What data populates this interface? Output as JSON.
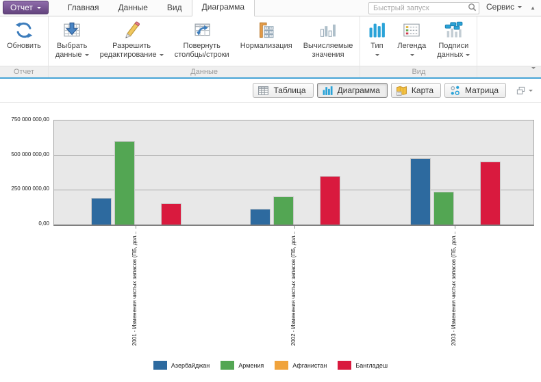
{
  "tabbar": {
    "report_button": {
      "label": "Отчет"
    },
    "tabs": [
      {
        "key": "home",
        "label": "Главная",
        "active": false
      },
      {
        "key": "data",
        "label": "Данные",
        "active": false
      },
      {
        "key": "view",
        "label": "Вид",
        "active": false
      },
      {
        "key": "chart",
        "label": "Диаграмма",
        "active": true
      }
    ],
    "search_placeholder": "Быстрый запуск",
    "service_label": "Сервис"
  },
  "ribbon": {
    "groups": [
      {
        "key": "report",
        "label": "Отчет",
        "buttons": [
          {
            "key": "refresh",
            "icon": "refresh-icon",
            "lines": [
              "Обновить"
            ],
            "dropdown": false
          }
        ]
      },
      {
        "key": "data",
        "label": "Данные",
        "buttons": [
          {
            "key": "select-data",
            "icon": "select-data-icon",
            "lines": [
              "Выбрать",
              "данные"
            ],
            "dropdown": true
          },
          {
            "key": "allow-editing",
            "icon": "edit-icon",
            "lines": [
              "Разрешить",
              "редактирование"
            ],
            "dropdown": true
          },
          {
            "key": "pivot-columns-rows",
            "icon": "pivot-icon",
            "lines": [
              "Повернуть",
              "столбцы/строки"
            ],
            "dropdown": false
          },
          {
            "key": "normalization",
            "icon": "normalize-icon",
            "lines": [
              "Нормализация"
            ],
            "dropdown": false
          },
          {
            "key": "calculated-values",
            "icon": "calc-values-icon",
            "lines": [
              "Вычисляемые",
              "значения"
            ],
            "dropdown": false
          }
        ]
      },
      {
        "key": "view",
        "label": "Вид",
        "buttons": [
          {
            "key": "type",
            "icon": "type-icon",
            "lines": [
              "Тип"
            ],
            "dropdown": true
          },
          {
            "key": "legend",
            "icon": "legend-icon",
            "lines": [
              "Легенда"
            ],
            "dropdown": true
          },
          {
            "key": "data-labels",
            "icon": "data-labels-icon",
            "lines": [
              "Подписи",
              "данных"
            ],
            "dropdown": true
          }
        ]
      }
    ]
  },
  "view_switcher": [
    {
      "key": "table",
      "label": "Таблица",
      "icon": "table-icon",
      "active": false
    },
    {
      "key": "chart",
      "label": "Диаграмма",
      "icon": "chart-icon",
      "active": true
    },
    {
      "key": "map",
      "label": "Карта",
      "icon": "map-icon",
      "active": false
    },
    {
      "key": "matrix",
      "label": "Матрица",
      "icon": "matrix-icon",
      "active": false
    }
  ],
  "chart_data": {
    "type": "bar",
    "categories": [
      "2001 - Изменения чистых запасов (ПБ, дол...",
      "2002 - Изменения чистых запасов (ПБ, дол...",
      "2003 - Изменения чистых запасов (ПБ, дол..."
    ],
    "series": [
      {
        "name": "Азербайджан",
        "color": "#2d6a9f",
        "values": [
          190000000,
          113000000,
          480000000
        ]
      },
      {
        "name": "Армения",
        "color": "#53a653",
        "values": [
          600000000,
          200000000,
          235000000
        ]
      },
      {
        "name": "Афганистан",
        "color": "#f0a33c",
        "values": [
          0,
          0,
          0
        ]
      },
      {
        "name": "Бангладеш",
        "color": "#d91a3e",
        "values": [
          152000000,
          348000000,
          455000000
        ]
      }
    ],
    "ylim": [
      0,
      750000000
    ],
    "ytick_labels": [
      "750 000 000,00",
      "500 000 000,00",
      "250 000 000,00",
      "0,00"
    ],
    "grid": true,
    "legend_position": "bottom",
    "plot_background": "#e8e8e8"
  }
}
